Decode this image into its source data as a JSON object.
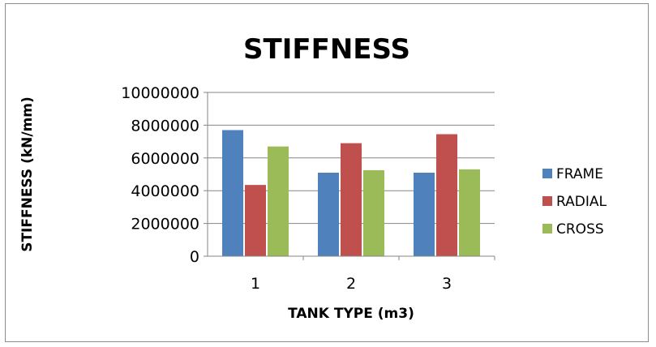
{
  "chart_data": {
    "type": "bar",
    "title": "STIFFNESS",
    "xlabel": "TANK TYPE (m3)",
    "ylabel": "STIFFNESS (kN/mm)",
    "categories": [
      "1",
      "2",
      "3"
    ],
    "ylim": [
      0,
      10000000
    ],
    "yticks": [
      "0",
      "2000000",
      "4000000",
      "6000000",
      "8000000",
      "10000000"
    ],
    "ytick_values": [
      0,
      2000000,
      4000000,
      6000000,
      8000000,
      10000000
    ],
    "grid": true,
    "legend_position": "right",
    "series": [
      {
        "name": "FRAME",
        "color": "#4f81bd",
        "values": [
          7700000,
          5100000,
          5100000
        ]
      },
      {
        "name": "RADIAL",
        "color": "#c0504d",
        "values": [
          4350000,
          6900000,
          7450000
        ]
      },
      {
        "name": "CROSS",
        "color": "#9bbb59",
        "values": [
          6700000,
          5250000,
          5300000
        ]
      }
    ]
  }
}
